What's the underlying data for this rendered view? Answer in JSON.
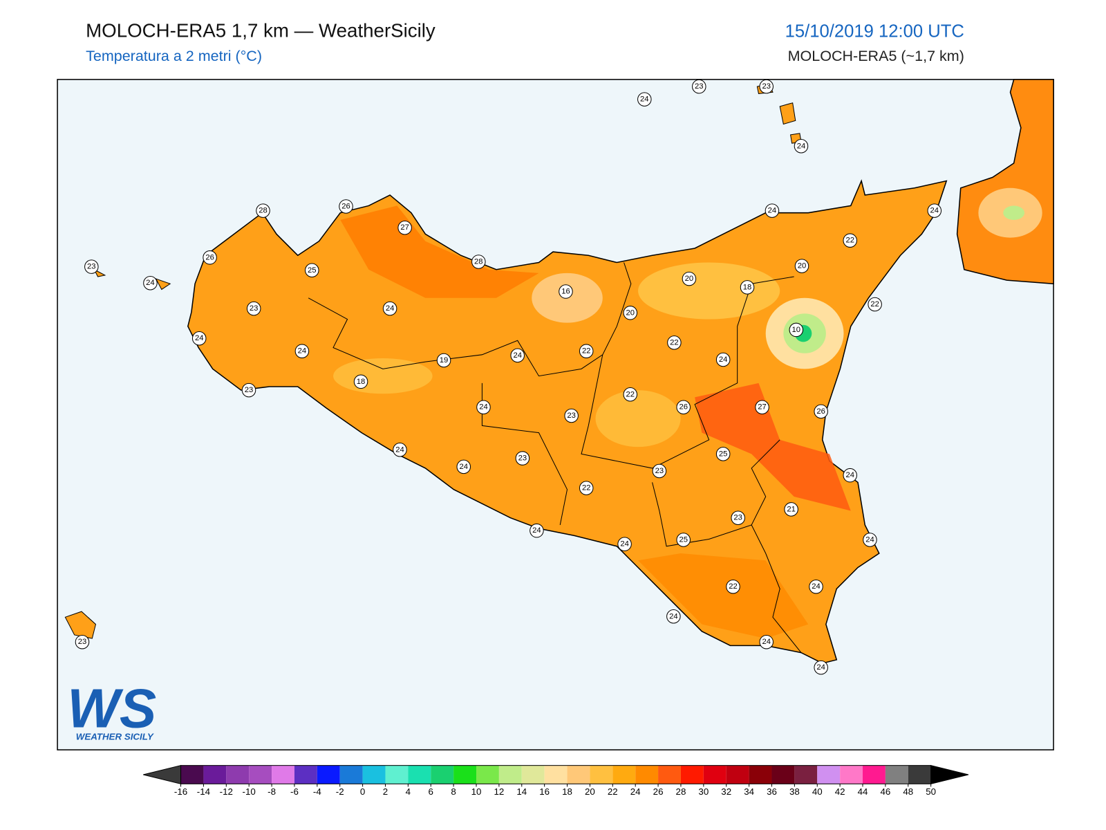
{
  "header": {
    "title": "MOLOCH-ERA5 1,7 km — WeatherSicily",
    "subtitle": "Temperatura a 2 metri (°C)",
    "datetime": "15/10/2019 12:00 UTC",
    "model": "MOLOCH-ERA5 (~1,7 km)"
  },
  "stations": [
    24,
    23,
    23,
    24,
    28,
    26,
    27,
    26,
    25,
    23,
    24,
    28,
    16,
    23,
    24,
    24,
    24,
    19,
    18,
    23,
    24,
    22,
    20,
    20,
    18,
    20,
    24,
    24,
    22,
    22,
    10,
    22,
    24,
    22,
    24,
    23,
    26,
    27,
    26,
    24,
    24,
    23,
    25,
    23,
    24,
    22,
    21,
    23,
    24,
    24,
    25,
    24,
    22,
    24,
    24,
    24,
    24,
    23
  ],
  "colorbar": {
    "ticks": [
      -16,
      -14,
      -12,
      -10,
      -8,
      -6,
      -4,
      -2,
      0,
      2,
      4,
      6,
      8,
      10,
      12,
      14,
      16,
      18,
      20,
      22,
      24,
      26,
      28,
      30,
      32,
      34,
      36,
      38,
      40,
      42,
      44,
      46,
      48,
      50
    ],
    "colors": [
      "#4a0a4f",
      "#6a1b9a",
      "#8e3bae",
      "#a64dbf",
      "#e07ae8",
      "#5c2fc2",
      "#0a1aff",
      "#1a7ad8",
      "#1ac0e0",
      "#5ff0d0",
      "#1ae0b0",
      "#1ad070",
      "#1ae01a",
      "#7ae84a",
      "#c0ec8a",
      "#e0e89a",
      "#ffe0a0",
      "#ffc878",
      "#ffc040",
      "#ffaa10",
      "#ff8a00",
      "#ff5a10",
      "#ff1a00",
      "#e00010",
      "#c00010",
      "#8a0008",
      "#6a0018",
      "#7a2040",
      "#d090f0",
      "#ff78c8",
      "#ff1a90",
      "#808080",
      "#3a3a3a"
    ],
    "under_color": "#3a3a3a",
    "over_color": "#000000"
  },
  "logo": {
    "mark": "WS",
    "name": "WEATHER SICILY"
  }
}
